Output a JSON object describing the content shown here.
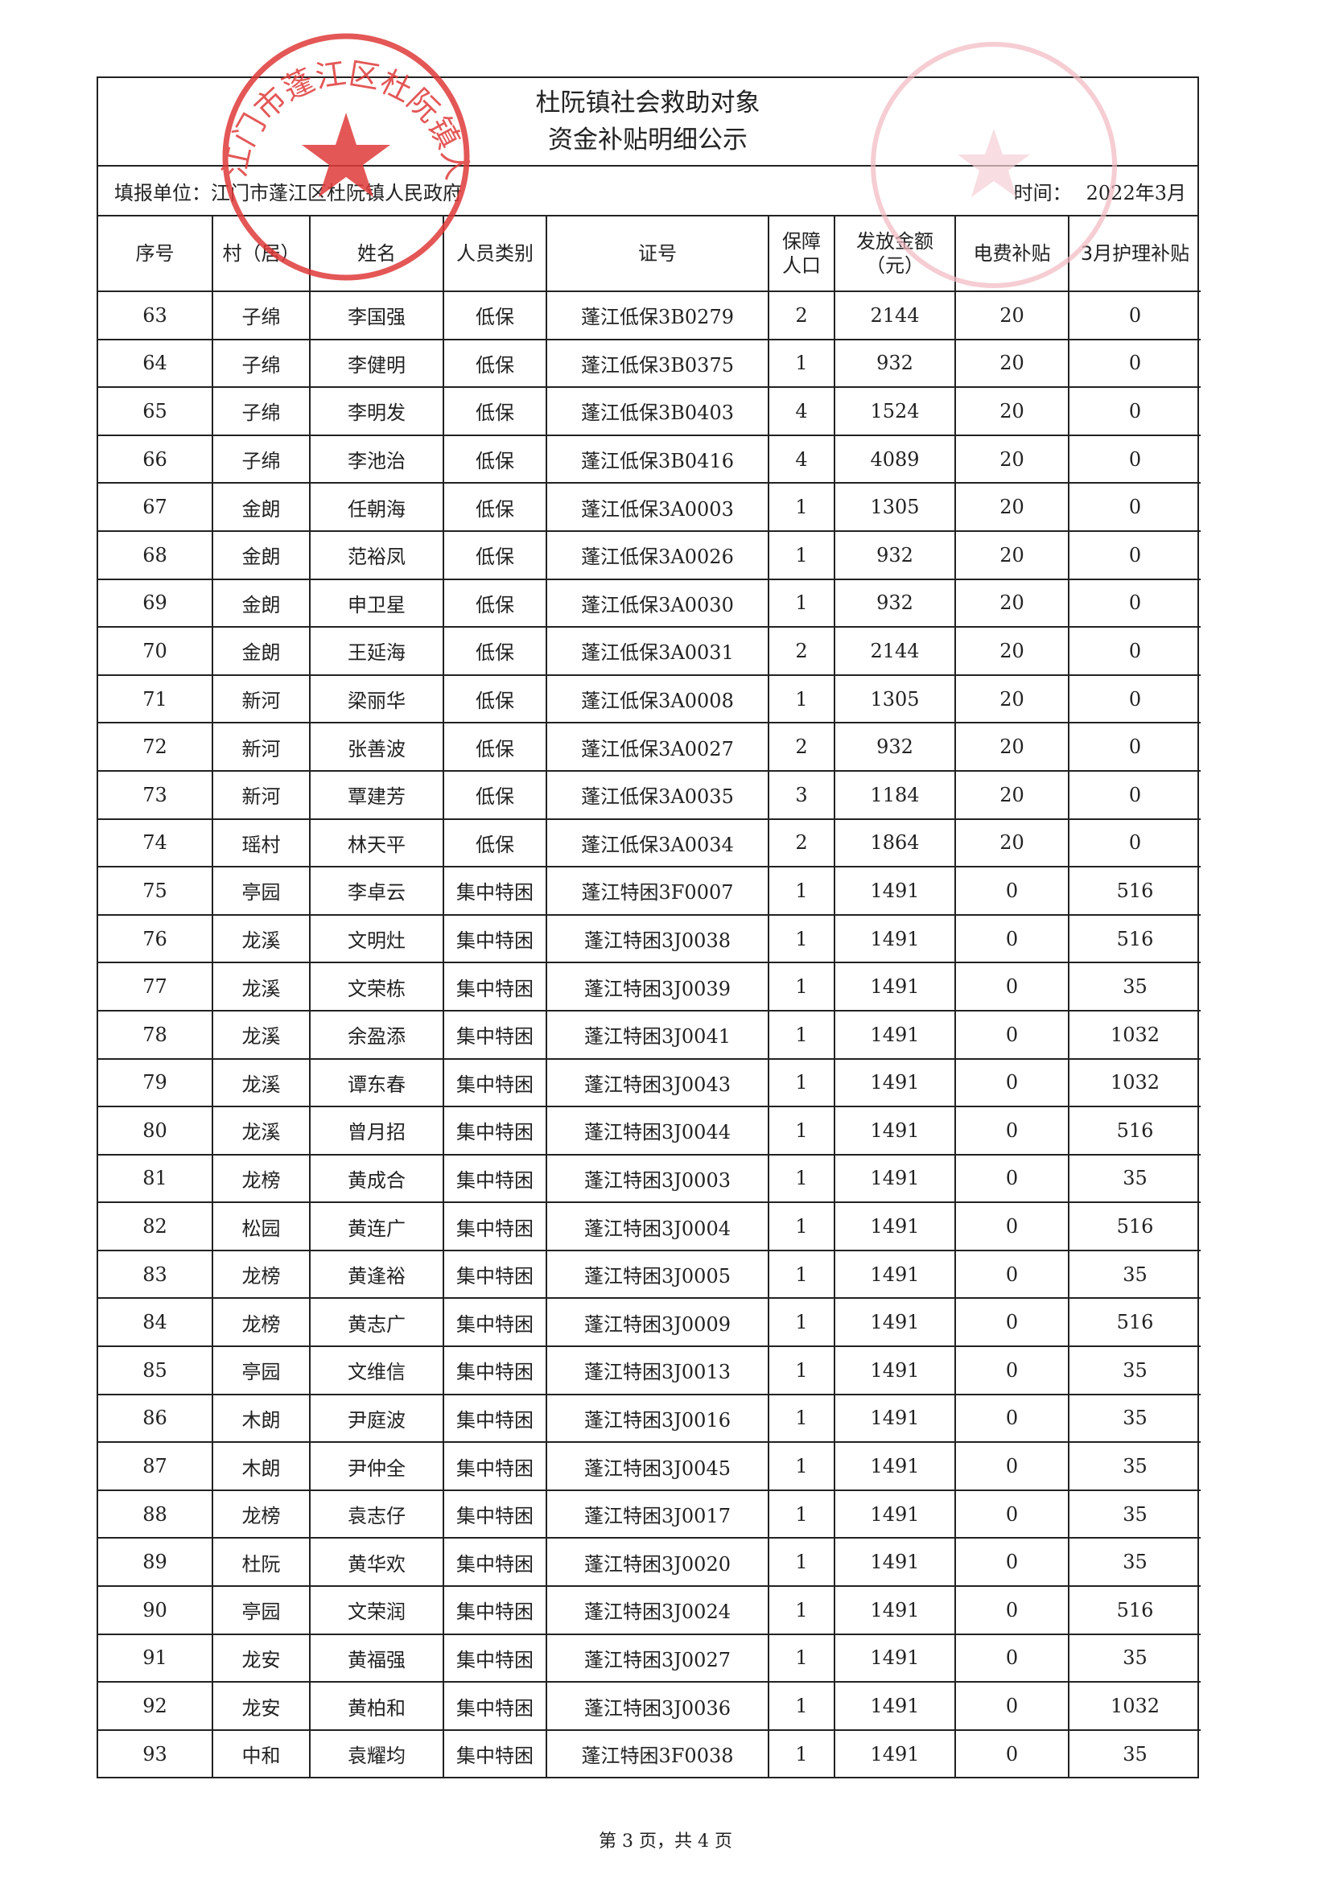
{
  "document": {
    "title_line1": "杜阮镇社会救助对象",
    "title_line2": "资金补贴明细公示",
    "reporting_unit_label": "填报单位：",
    "reporting_unit": "江门市蓬江区杜阮镇人民政府",
    "time_label": "时间：",
    "time_value": "2022年3月"
  },
  "stamp": {
    "text": "江门市蓬江区杜阮镇人民政府",
    "color": "#e03a3a",
    "faint_color": "#f2b8c0"
  },
  "table": {
    "headers": [
      "序号",
      "村（居）",
      "姓名",
      "人员类别",
      "证号",
      "保障\n人口",
      "发放金额\n（元）",
      "电费补贴",
      "3月护理补贴"
    ],
    "rows": [
      [
        "63",
        "子绵",
        "李国强",
        "低保",
        "蓬江低保3B0279",
        "2",
        "2144",
        "20",
        "0"
      ],
      [
        "64",
        "子绵",
        "李健明",
        "低保",
        "蓬江低保3B0375",
        "1",
        "932",
        "20",
        "0"
      ],
      [
        "65",
        "子绵",
        "李明发",
        "低保",
        "蓬江低保3B0403",
        "4",
        "1524",
        "20",
        "0"
      ],
      [
        "66",
        "子绵",
        "李池治",
        "低保",
        "蓬江低保3B0416",
        "4",
        "4089",
        "20",
        "0"
      ],
      [
        "67",
        "金朗",
        "任朝海",
        "低保",
        "蓬江低保3A0003",
        "1",
        "1305",
        "20",
        "0"
      ],
      [
        "68",
        "金朗",
        "范裕凤",
        "低保",
        "蓬江低保3A0026",
        "1",
        "932",
        "20",
        "0"
      ],
      [
        "69",
        "金朗",
        "申卫星",
        "低保",
        "蓬江低保3A0030",
        "1",
        "932",
        "20",
        "0"
      ],
      [
        "70",
        "金朗",
        "王延海",
        "低保",
        "蓬江低保3A0031",
        "2",
        "2144",
        "20",
        "0"
      ],
      [
        "71",
        "新河",
        "梁丽华",
        "低保",
        "蓬江低保3A0008",
        "1",
        "1305",
        "20",
        "0"
      ],
      [
        "72",
        "新河",
        "张善波",
        "低保",
        "蓬江低保3A0027",
        "2",
        "932",
        "20",
        "0"
      ],
      [
        "73",
        "新河",
        "覃建芳",
        "低保",
        "蓬江低保3A0035",
        "3",
        "1184",
        "20",
        "0"
      ],
      [
        "74",
        "瑶村",
        "林天平",
        "低保",
        "蓬江低保3A0034",
        "2",
        "1864",
        "20",
        "0"
      ],
      [
        "75",
        "亭园",
        "李卓云",
        "集中特困",
        "蓬江特困3F0007",
        "1",
        "1491",
        "0",
        "516"
      ],
      [
        "76",
        "龙溪",
        "文明灶",
        "集中特困",
        "蓬江特困3J0038",
        "1",
        "1491",
        "0",
        "516"
      ],
      [
        "77",
        "龙溪",
        "文荣栋",
        "集中特困",
        "蓬江特困3J0039",
        "1",
        "1491",
        "0",
        "35"
      ],
      [
        "78",
        "龙溪",
        "余盈添",
        "集中特困",
        "蓬江特困3J0041",
        "1",
        "1491",
        "0",
        "1032"
      ],
      [
        "79",
        "龙溪",
        "谭东春",
        "集中特困",
        "蓬江特困3J0043",
        "1",
        "1491",
        "0",
        "1032"
      ],
      [
        "80",
        "龙溪",
        "曾月招",
        "集中特困",
        "蓬江特困3J0044",
        "1",
        "1491",
        "0",
        "516"
      ],
      [
        "81",
        "龙榜",
        "黄成合",
        "集中特困",
        "蓬江特困3J0003",
        "1",
        "1491",
        "0",
        "35"
      ],
      [
        "82",
        "松园",
        "黄连广",
        "集中特困",
        "蓬江特困3J0004",
        "1",
        "1491",
        "0",
        "516"
      ],
      [
        "83",
        "龙榜",
        "黄逢裕",
        "集中特困",
        "蓬江特困3J0005",
        "1",
        "1491",
        "0",
        "35"
      ],
      [
        "84",
        "龙榜",
        "黄志广",
        "集中特困",
        "蓬江特困3J0009",
        "1",
        "1491",
        "0",
        "516"
      ],
      [
        "85",
        "亭园",
        "文维信",
        "集中特困",
        "蓬江特困3J0013",
        "1",
        "1491",
        "0",
        "35"
      ],
      [
        "86",
        "木朗",
        "尹庭波",
        "集中特困",
        "蓬江特困3J0016",
        "1",
        "1491",
        "0",
        "35"
      ],
      [
        "87",
        "木朗",
        "尹仲全",
        "集中特困",
        "蓬江特困3J0045",
        "1",
        "1491",
        "0",
        "35"
      ],
      [
        "88",
        "龙榜",
        "袁志仔",
        "集中特困",
        "蓬江特困3J0017",
        "1",
        "1491",
        "0",
        "35"
      ],
      [
        "89",
        "杜阮",
        "黄华欢",
        "集中特困",
        "蓬江特困3J0020",
        "1",
        "1491",
        "0",
        "35"
      ],
      [
        "90",
        "亭园",
        "文荣润",
        "集中特困",
        "蓬江特困3J0024",
        "1",
        "1491",
        "0",
        "516"
      ],
      [
        "91",
        "龙安",
        "黄福强",
        "集中特困",
        "蓬江特困3J0027",
        "1",
        "1491",
        "0",
        "35"
      ],
      [
        "92",
        "龙安",
        "黄柏和",
        "集中特困",
        "蓬江特困3J0036",
        "1",
        "1491",
        "0",
        "1032"
      ],
      [
        "93",
        "中和",
        "袁耀均",
        "集中特困",
        "蓬江特困3F0038",
        "1",
        "1491",
        "0",
        "35"
      ]
    ]
  },
  "footer": {
    "page_text": "第 3 页，共 4 页"
  }
}
